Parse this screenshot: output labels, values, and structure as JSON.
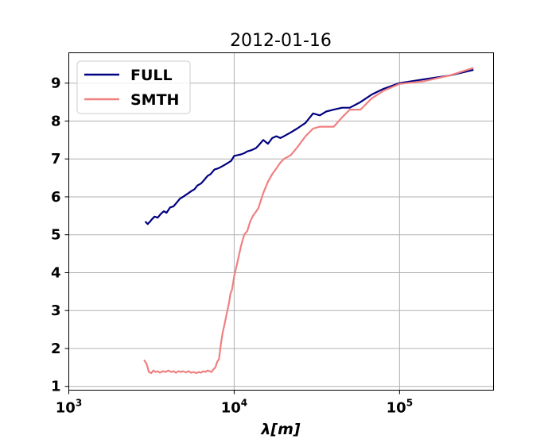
{
  "chart_data": {
    "type": "line",
    "title": "2012-01-16",
    "xlabel": "λ[m]",
    "ylabel": "",
    "xscale": "log",
    "xlim": [
      1000,
      370000
    ],
    "ylim": [
      0.9,
      9.8
    ],
    "grid": true,
    "legend_position": "upper-left",
    "x_ticks": [
      {
        "value": 1000,
        "base": "10",
        "exp": "3"
      },
      {
        "value": 10000,
        "base": "10",
        "exp": "4"
      },
      {
        "value": 100000,
        "base": "10",
        "exp": "5"
      }
    ],
    "y_ticks": [
      1,
      2,
      3,
      4,
      5,
      6,
      7,
      8,
      9
    ],
    "series": [
      {
        "name": "FULL",
        "color": "#000080",
        "x": [
          2900,
          3000,
          3100,
          3200,
          3300,
          3450,
          3600,
          3750,
          3900,
          4100,
          4300,
          4500,
          4700,
          4900,
          5100,
          5300,
          5500,
          5750,
          6000,
          6300,
          6600,
          6900,
          7200,
          7600,
          8000,
          8400,
          8800,
          9200,
          9600,
          10000,
          10500,
          11000,
          11500,
          12000,
          12500,
          13000,
          13500,
          14000,
          15000,
          16000,
          17000,
          18000,
          19000,
          20000,
          22000,
          24000,
          27000,
          30000,
          33000,
          36000,
          40000,
          45000,
          50000,
          58000,
          68000,
          80000,
          100000,
          140000,
          200000,
          280000
        ],
        "values": [
          5.35,
          5.28,
          5.35,
          5.42,
          5.48,
          5.45,
          5.55,
          5.62,
          5.58,
          5.72,
          5.75,
          5.85,
          5.95,
          6.0,
          6.05,
          6.1,
          6.15,
          6.2,
          6.3,
          6.35,
          6.45,
          6.55,
          6.6,
          6.72,
          6.75,
          6.8,
          6.85,
          6.9,
          6.95,
          7.08,
          7.1,
          7.12,
          7.15,
          7.2,
          7.22,
          7.25,
          7.28,
          7.35,
          7.5,
          7.4,
          7.55,
          7.6,
          7.55,
          7.6,
          7.7,
          7.8,
          7.95,
          8.2,
          8.15,
          8.25,
          8.3,
          8.35,
          8.35,
          8.5,
          8.7,
          8.85,
          9.0,
          9.1,
          9.2,
          9.35
        ]
      },
      {
        "name": "SMTH",
        "color": "#f08080",
        "x": [
          2850,
          2950,
          3050,
          3150,
          3250,
          3350,
          3450,
          3550,
          3700,
          3850,
          4000,
          4150,
          4300,
          4450,
          4600,
          4750,
          4900,
          5100,
          5300,
          5500,
          5700,
          5900,
          6100,
          6300,
          6500,
          6700,
          6900,
          7100,
          7300,
          7500,
          7700,
          7900,
          8100,
          8300,
          8500,
          8700,
          8900,
          9100,
          9300,
          9500,
          9700,
          10000,
          10500,
          11000,
          11500,
          12000,
          12500,
          13000,
          13500,
          14000,
          15000,
          16000,
          17000,
          18000,
          19000,
          20000,
          22000,
          24000,
          27000,
          30000,
          33000,
          36000,
          40000,
          45000,
          50000,
          58000,
          68000,
          80000,
          100000,
          140000,
          200000,
          280000
        ],
        "values": [
          1.7,
          1.6,
          1.38,
          1.35,
          1.42,
          1.38,
          1.4,
          1.36,
          1.4,
          1.38,
          1.42,
          1.38,
          1.4,
          1.36,
          1.4,
          1.38,
          1.4,
          1.37,
          1.4,
          1.36,
          1.38,
          1.35,
          1.38,
          1.36,
          1.4,
          1.38,
          1.42,
          1.4,
          1.38,
          1.45,
          1.5,
          1.65,
          1.72,
          2.1,
          2.4,
          2.6,
          2.8,
          3.0,
          3.2,
          3.45,
          3.55,
          3.9,
          4.3,
          4.7,
          5.0,
          5.1,
          5.35,
          5.5,
          5.6,
          5.7,
          6.1,
          6.4,
          6.6,
          6.75,
          6.9,
          7.0,
          7.1,
          7.3,
          7.6,
          7.8,
          7.85,
          7.85,
          7.85,
          8.1,
          8.3,
          8.3,
          8.6,
          8.8,
          8.98,
          9.05,
          9.2,
          9.4
        ]
      }
    ]
  }
}
